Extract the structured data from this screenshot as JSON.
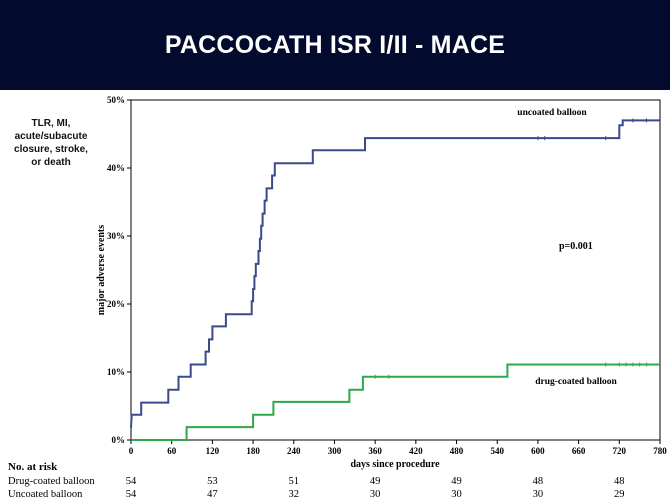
{
  "header": {
    "title": "PACCOCATH ISR I/II - MACE"
  },
  "side_note": [
    "TLR, MI,",
    "acute/subacute",
    "closure, stroke,",
    "or death"
  ],
  "chart_data": {
    "type": "line",
    "xlabel": "days since procedure",
    "ylabel": "major adverse events",
    "xlim": [
      0,
      780
    ],
    "ylim": [
      0,
      50
    ],
    "x_ticks": [
      0,
      60,
      120,
      180,
      240,
      300,
      360,
      420,
      480,
      540,
      600,
      660,
      720,
      780
    ],
    "y_ticks": [
      0,
      10,
      20,
      30,
      40,
      50
    ],
    "y_tick_labels": [
      "0%",
      "10%",
      "20%",
      "30%",
      "40%",
      "50%"
    ],
    "grid": false,
    "p_value": "p=0.001",
    "series": [
      {
        "name": "uncoated balloon",
        "color": "#3a4a8a",
        "step": true,
        "points": [
          [
            0,
            1.8
          ],
          [
            1,
            3.7
          ],
          [
            15,
            3.7
          ],
          [
            15,
            5.5
          ],
          [
            55,
            5.5
          ],
          [
            55,
            7.4
          ],
          [
            70,
            7.4
          ],
          [
            70,
            9.3
          ],
          [
            88,
            9.3
          ],
          [
            88,
            11.1
          ],
          [
            110,
            11.1
          ],
          [
            110,
            13.0
          ],
          [
            115,
            13.0
          ],
          [
            115,
            14.8
          ],
          [
            120,
            14.8
          ],
          [
            120,
            16.7
          ],
          [
            140,
            16.7
          ],
          [
            140,
            18.5
          ],
          [
            178,
            18.5
          ],
          [
            178,
            20.4
          ],
          [
            180,
            20.4
          ],
          [
            180,
            22.2
          ],
          [
            182,
            22.2
          ],
          [
            182,
            24.1
          ],
          [
            184,
            24.1
          ],
          [
            184,
            25.9
          ],
          [
            188,
            25.9
          ],
          [
            188,
            27.8
          ],
          [
            190,
            27.8
          ],
          [
            190,
            29.6
          ],
          [
            192,
            29.6
          ],
          [
            192,
            31.5
          ],
          [
            194,
            31.5
          ],
          [
            194,
            33.3
          ],
          [
            197,
            33.3
          ],
          [
            197,
            35.2
          ],
          [
            200,
            35.2
          ],
          [
            200,
            37.0
          ],
          [
            208,
            37.0
          ],
          [
            208,
            38.9
          ],
          [
            212,
            38.9
          ],
          [
            212,
            40.7
          ],
          [
            268,
            40.7
          ],
          [
            268,
            42.6
          ],
          [
            345,
            42.6
          ],
          [
            345,
            44.4
          ],
          [
            720,
            44.4
          ],
          [
            720,
            46.3
          ],
          [
            725,
            46.3
          ],
          [
            725,
            47.0
          ],
          [
            780,
            47.0
          ]
        ],
        "censor_x": [
          600,
          610,
          700,
          740,
          760
        ]
      },
      {
        "name": "drug-coated balloon",
        "color": "#2fa84a",
        "step": true,
        "points": [
          [
            0,
            0
          ],
          [
            82,
            0
          ],
          [
            82,
            1.9
          ],
          [
            180,
            1.9
          ],
          [
            180,
            3.7
          ],
          [
            210,
            3.7
          ],
          [
            210,
            5.6
          ],
          [
            322,
            5.6
          ],
          [
            322,
            7.4
          ],
          [
            342,
            7.4
          ],
          [
            342,
            9.3
          ],
          [
            555,
            9.3
          ],
          [
            555,
            11.1
          ],
          [
            780,
            11.1
          ]
        ],
        "censor_x": [
          360,
          380,
          700,
          720,
          730,
          740,
          750,
          760
        ]
      }
    ]
  },
  "risk_table": {
    "title": "No. at risk",
    "rows": [
      {
        "label": "Drug-coated balloon",
        "values": [
          "54",
          "53",
          "51",
          "49",
          "49",
          "48",
          "48"
        ]
      },
      {
        "label": "Uncoated balloon",
        "values": [
          "54",
          "47",
          "32",
          "30",
          "30",
          "30",
          "29"
        ]
      }
    ]
  }
}
